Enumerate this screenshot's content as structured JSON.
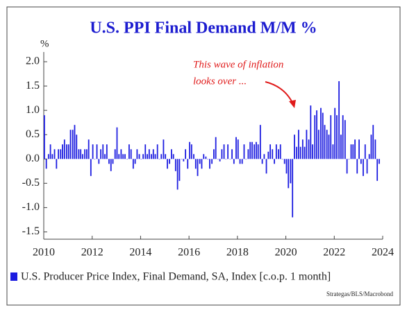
{
  "chart_data": {
    "type": "bar",
    "title": "U.S. PPI Final Demand M/M %",
    "y_label": "%",
    "annotation": [
      "This wave of inflation",
      "looks over ..."
    ],
    "source": "Strategas/BLS/Macrobond",
    "xlim": [
      2010,
      2024
    ],
    "xticks": [
      2010,
      2012,
      2014,
      2016,
      2018,
      2020,
      2022,
      2024
    ],
    "ylim": [
      -1.65,
      2.2
    ],
    "yticks": [
      {
        "value": 2.0,
        "label": "2.0"
      },
      1.5,
      {
        "value": 1.0,
        "label": "1.0"
      },
      0.5,
      {
        "value": 0.0,
        "label": "0.0"
      },
      -0.5,
      {
        "value": -1.0,
        "label": "-1.0"
      },
      -1.5
    ],
    "grid": false,
    "x": [
      2010.0,
      2010.08,
      2010.17,
      2010.25,
      2010.33,
      2010.42,
      2010.5,
      2010.58,
      2010.67,
      2010.75,
      2010.83,
      2010.92,
      2011.0,
      2011.08,
      2011.17,
      2011.25,
      2011.33,
      2011.42,
      2011.5,
      2011.58,
      2011.67,
      2011.75,
      2011.83,
      2011.92,
      2012.0,
      2012.08,
      2012.17,
      2012.25,
      2012.33,
      2012.42,
      2012.5,
      2012.58,
      2012.67,
      2012.75,
      2012.83,
      2012.92,
      2013.0,
      2013.08,
      2013.17,
      2013.25,
      2013.33,
      2013.42,
      2013.5,
      2013.58,
      2013.67,
      2013.75,
      2013.83,
      2013.92,
      2014.0,
      2014.08,
      2014.17,
      2014.25,
      2014.33,
      2014.42,
      2014.5,
      2014.58,
      2014.67,
      2014.75,
      2014.83,
      2014.92,
      2015.0,
      2015.08,
      2015.17,
      2015.25,
      2015.33,
      2015.42,
      2015.5,
      2015.58,
      2015.67,
      2015.75,
      2015.83,
      2015.92,
      2016.0,
      2016.08,
      2016.17,
      2016.25,
      2016.33,
      2016.42,
      2016.5,
      2016.58,
      2016.67,
      2016.75,
      2016.83,
      2016.92,
      2017.0,
      2017.08,
      2017.17,
      2017.25,
      2017.33,
      2017.42,
      2017.5,
      2017.58,
      2017.67,
      2017.75,
      2017.83,
      2017.92,
      2018.0,
      2018.08,
      2018.17,
      2018.25,
      2018.33,
      2018.42,
      2018.5,
      2018.58,
      2018.67,
      2018.75,
      2018.83,
      2018.92,
      2019.0,
      2019.08,
      2019.17,
      2019.25,
      2019.33,
      2019.42,
      2019.5,
      2019.58,
      2019.67,
      2019.75,
      2019.83,
      2019.92,
      2020.0,
      2020.08,
      2020.17,
      2020.25,
      2020.33,
      2020.42,
      2020.5,
      2020.58,
      2020.67,
      2020.75,
      2020.83,
      2020.92,
      2021.0,
      2021.08,
      2021.17,
      2021.25,
      2021.33,
      2021.42,
      2021.5,
      2021.58,
      2021.67,
      2021.75,
      2021.83,
      2021.92,
      2022.0,
      2022.08,
      2022.17,
      2022.25,
      2022.33,
      2022.42,
      2022.5,
      2022.58,
      2022.67,
      2022.75,
      2022.83,
      2022.92,
      2023.0,
      2023.08,
      2023.17,
      2023.25,
      2023.33,
      2023.42,
      2023.5,
      2023.58,
      2023.67,
      2023.75,
      2023.83
    ],
    "series": [
      {
        "name": "U.S. Producer Price Index, Final Demand, SA, Index [c.o.p. 1 month]",
        "color": "#1c1ce0",
        "values": [
          0.9,
          -0.2,
          0.1,
          0.3,
          0.1,
          0.2,
          -0.2,
          0.2,
          0.2,
          0.3,
          0.4,
          0.3,
          0.3,
          0.6,
          0.6,
          0.7,
          0.5,
          0.2,
          0.2,
          0.1,
          0.2,
          0.2,
          0.4,
          -0.35,
          0.3,
          0.0,
          0.3,
          -0.1,
          0.2,
          0.3,
          0.1,
          0.3,
          -0.1,
          -0.25,
          -0.1,
          0.2,
          0.65,
          0.1,
          0.2,
          0.1,
          0.1,
          0.0,
          0.3,
          0.2,
          -0.2,
          -0.1,
          0.2,
          0.1,
          0.0,
          0.1,
          0.3,
          0.1,
          0.2,
          0.1,
          0.2,
          0.1,
          0.3,
          0.0,
          0.1,
          0.4,
          0.1,
          -0.2,
          -0.1,
          0.2,
          0.1,
          -0.25,
          -0.63,
          -0.45,
          0.0,
          -0.05,
          0.2,
          -0.2,
          0.35,
          0.3,
          0.1,
          -0.2,
          -0.35,
          -0.1,
          -0.2,
          0.1,
          0.05,
          0.0,
          -0.2,
          -0.1,
          0.2,
          0.45,
          0.0,
          -0.05,
          0.2,
          0.3,
          0.0,
          0.3,
          0.0,
          0.2,
          -0.1,
          0.45,
          0.4,
          -0.1,
          -0.1,
          0.3,
          0.0,
          0.2,
          0.35,
          0.35,
          0.3,
          0.35,
          0.3,
          0.7,
          -0.1,
          0.1,
          -0.3,
          0.15,
          0.3,
          0.2,
          -0.1,
          0.3,
          0.2,
          0.3,
          0.0,
          -0.1,
          -0.3,
          -0.6,
          -0.5,
          -1.2,
          0.5,
          0.25,
          0.6,
          0.25,
          0.4,
          0.25,
          0.6,
          0.4,
          1.1,
          0.3,
          0.9,
          1.0,
          0.6,
          1.05,
          0.95,
          0.7,
          0.6,
          0.5,
          0.9,
          0.3,
          1.05,
          0.9,
          1.6,
          0.5,
          0.9,
          0.8,
          -0.3,
          0.0,
          0.3,
          0.3,
          0.4,
          -0.3,
          0.4,
          -0.1,
          -0.35,
          0.3,
          -0.3,
          0.1,
          0.5,
          0.7,
          0.4,
          -0.45,
          -0.1
        ]
      }
    ]
  }
}
